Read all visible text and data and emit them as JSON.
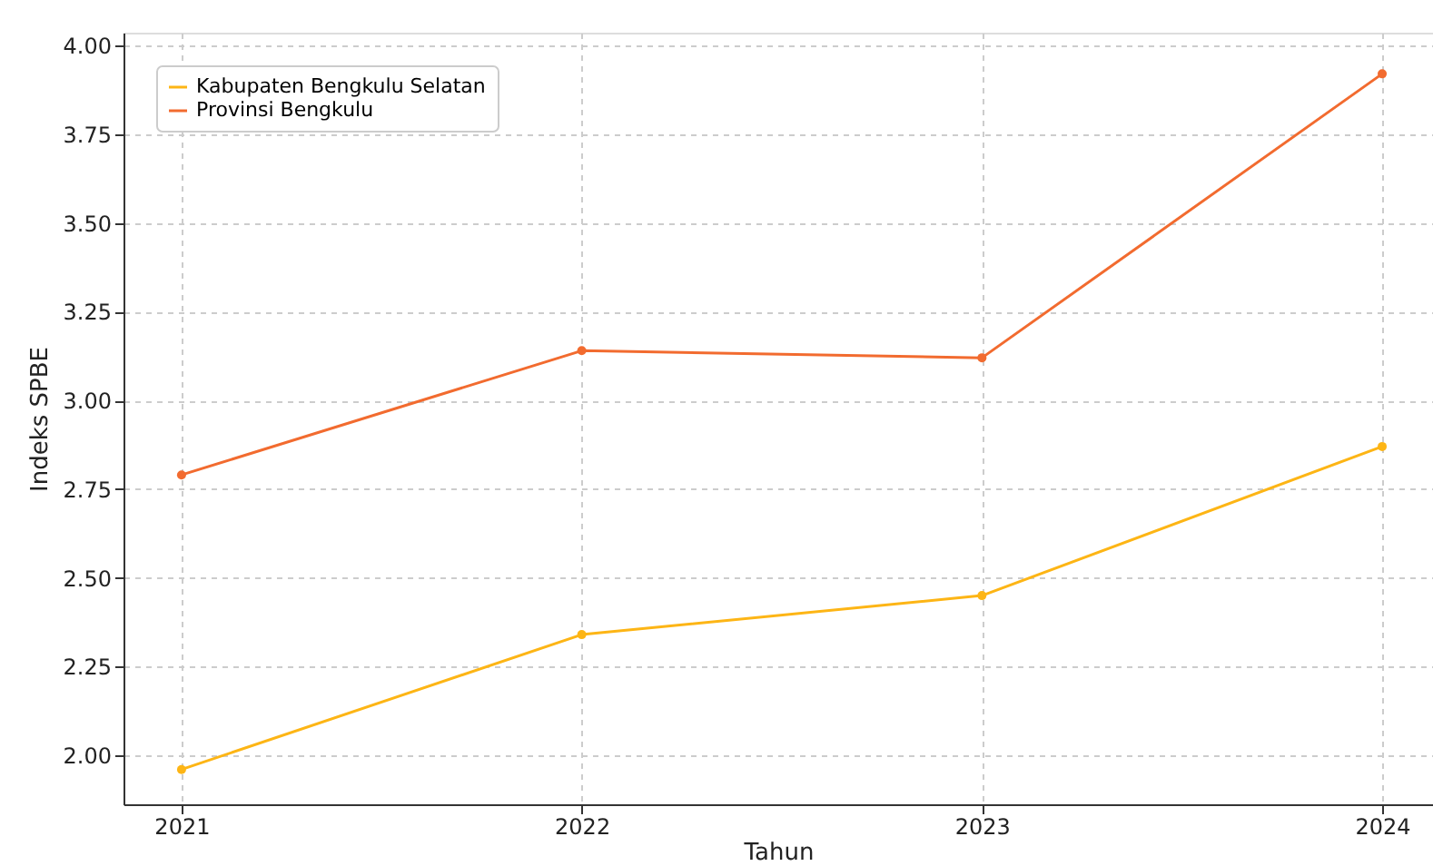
{
  "chart_data": {
    "type": "line",
    "xlabel": "Tahun",
    "ylabel": "Indeks SPBE",
    "x": [
      2021,
      2022,
      2023,
      2024
    ],
    "series": [
      {
        "name": "Kabupaten Bengkulu Selatan",
        "color": "#fdb515",
        "values": [
          1.96,
          2.34,
          2.45,
          2.87
        ]
      },
      {
        "name": "Provinsi Bengkulu",
        "color": "#f26b2f",
        "values": [
          2.79,
          3.14,
          3.12,
          3.92
        ]
      }
    ],
    "xlim": [
      2020.855,
      2024.127
    ],
    "xticks": [
      2021,
      2022,
      2023,
      2024
    ],
    "ylim": [
      1.862,
      4.036
    ],
    "yticks": [
      {
        "value": 2.0,
        "label": "2.00"
      },
      {
        "value": 2.25,
        "label": "2.25"
      },
      {
        "value": 2.5,
        "label": "2.50"
      },
      {
        "value": 2.75,
        "label": "2.75"
      },
      {
        "value": 3.0,
        "label": "3.00"
      },
      {
        "value": 3.25,
        "label": "3.25"
      },
      {
        "value": 3.5,
        "label": "3.50"
      },
      {
        "value": 3.75,
        "label": "3.75"
      },
      {
        "value": 4.0,
        "label": "4.00"
      }
    ],
    "grid": true,
    "legend": "top left",
    "marker": "circle",
    "line_style": "solid"
  }
}
